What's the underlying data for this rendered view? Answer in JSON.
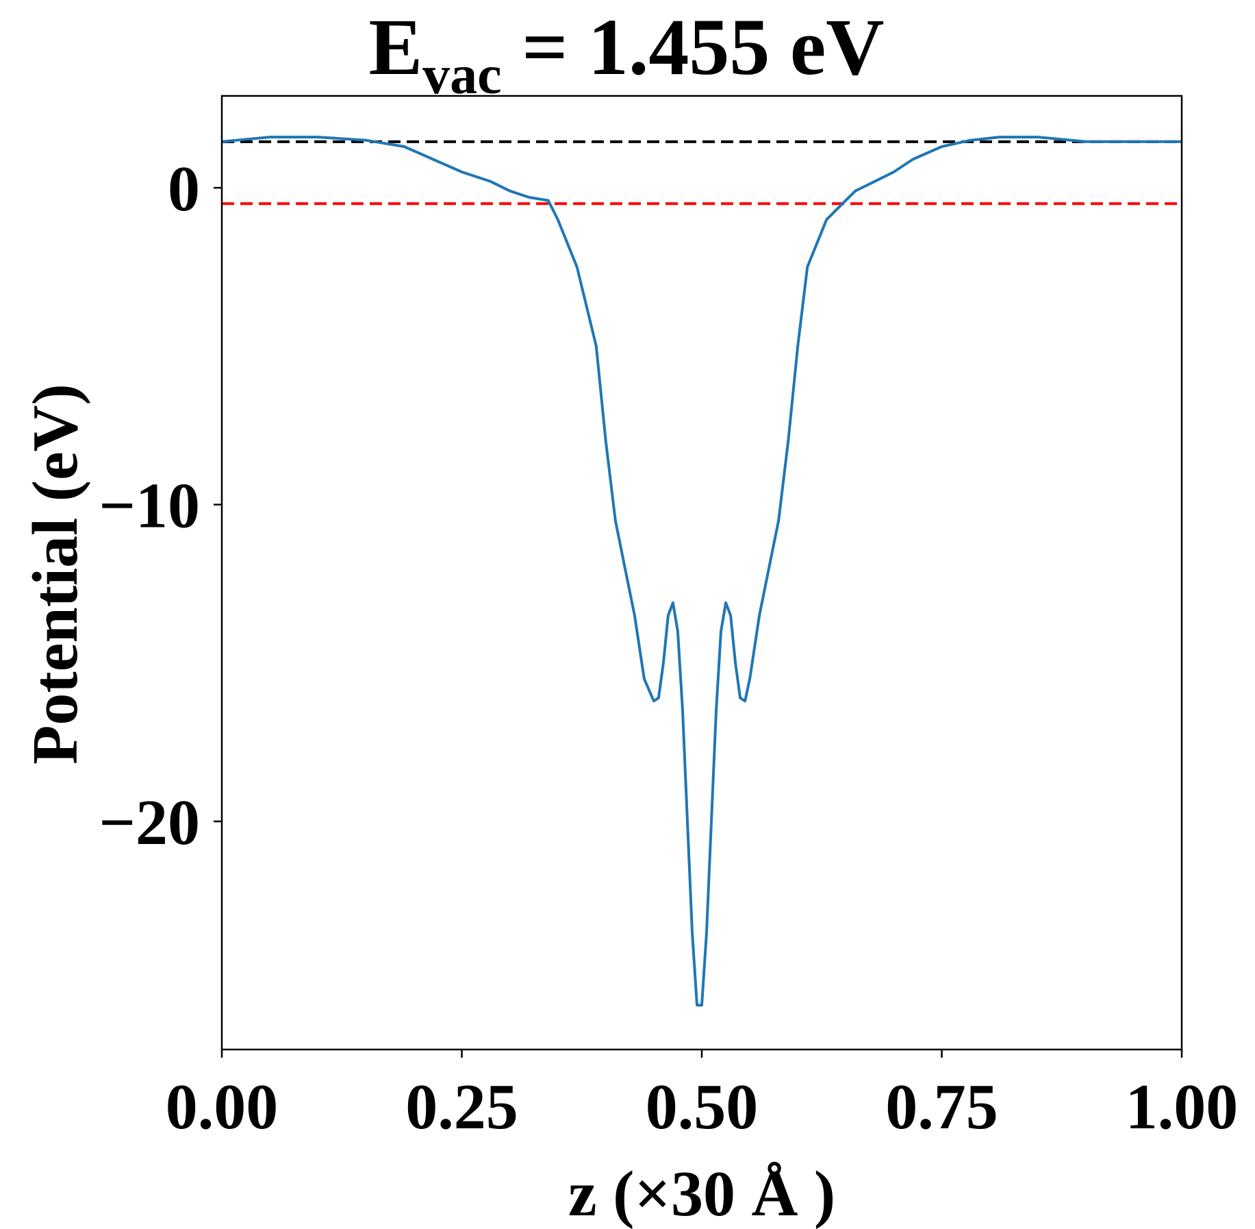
{
  "chart_data": {
    "type": "line",
    "title_main": "E",
    "title_sub": "vac",
    "title_rest": " = 1.455 eV",
    "xlabel": "z (×30 Å )",
    "ylabel": "Potential (eV)",
    "xlim": [
      0.0,
      1.0
    ],
    "ylim": [
      -27.2,
      2.9
    ],
    "x_ticks": [
      0.0,
      0.25,
      0.5,
      0.75,
      1.0
    ],
    "x_tick_labels": [
      "0.00",
      "0.25",
      "0.50",
      "0.75",
      "1.00"
    ],
    "y_ticks": [
      0,
      -10,
      -20
    ],
    "y_tick_labels": [
      "0",
      "−10",
      "−20"
    ],
    "grid": false,
    "reference_lines": [
      {
        "y": 1.455,
        "color": "#000000",
        "style": "dashed"
      },
      {
        "y": -0.5,
        "color": "#ff0000",
        "style": "dashed"
      }
    ],
    "series": [
      {
        "color": "#1f77b4",
        "x": [
          0.0,
          0.05,
          0.1,
          0.15,
          0.19,
          0.22,
          0.25,
          0.28,
          0.3,
          0.32,
          0.34,
          0.35,
          0.37,
          0.39,
          0.4,
          0.41,
          0.42,
          0.43,
          0.44,
          0.45,
          0.455,
          0.46,
          0.465,
          0.47,
          0.475,
          0.48,
          0.485,
          0.49,
          0.495,
          0.5,
          0.505,
          0.51,
          0.515,
          0.52,
          0.525,
          0.53,
          0.535,
          0.54,
          0.545,
          0.55,
          0.56,
          0.57,
          0.58,
          0.59,
          0.6,
          0.61,
          0.63,
          0.65,
          0.66,
          0.68,
          0.7,
          0.72,
          0.75,
          0.78,
          0.81,
          0.85,
          0.9,
          0.95,
          1.0
        ],
        "y": [
          1.455,
          1.6,
          1.6,
          1.5,
          1.3,
          0.9,
          0.5,
          0.2,
          -0.1,
          -0.3,
          -0.4,
          -1.0,
          -2.5,
          -5.0,
          -8.0,
          -10.5,
          -12.0,
          -13.5,
          -15.5,
          -16.2,
          -16.1,
          -15.0,
          -13.5,
          -13.1,
          -14.0,
          -16.5,
          -20.0,
          -23.5,
          -25.8,
          -25.8,
          -23.5,
          -20.0,
          -16.5,
          -14.0,
          -13.1,
          -13.5,
          -15.0,
          -16.1,
          -16.2,
          -15.5,
          -13.5,
          -12.0,
          -10.5,
          -8.0,
          -5.0,
          -2.5,
          -1.0,
          -0.4,
          -0.1,
          0.2,
          0.5,
          0.9,
          1.3,
          1.5,
          1.6,
          1.6,
          1.455,
          1.455,
          1.455
        ]
      }
    ]
  }
}
